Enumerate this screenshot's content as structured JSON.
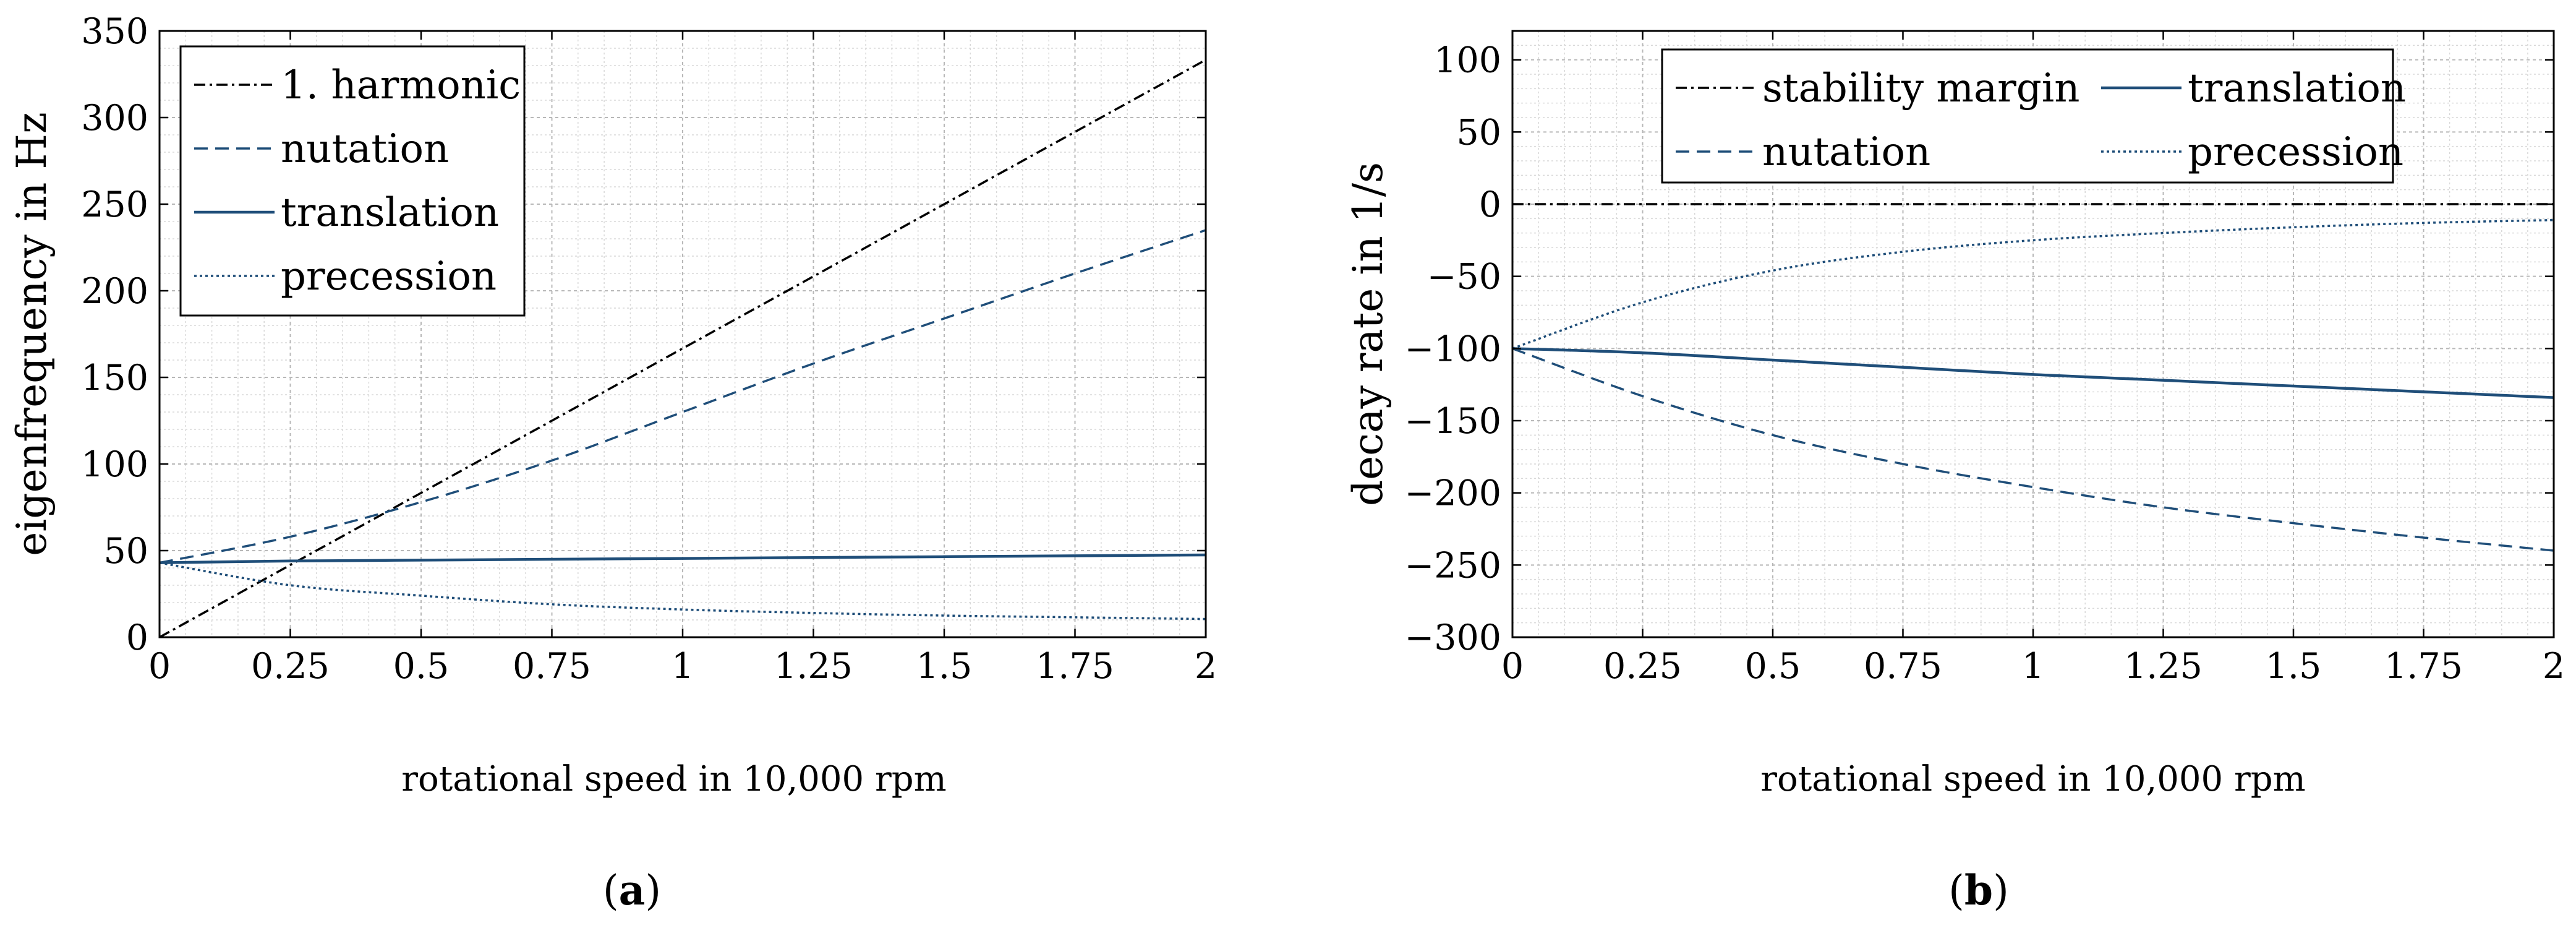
{
  "chart_data": [
    {
      "id": "a",
      "type": "line",
      "panel_label": "a",
      "xlabel": "rotational speed in 10,000 rpm",
      "ylabel": "eigenfrequency in Hz",
      "xlim": [
        0,
        2
      ],
      "ylim": [
        0,
        350
      ],
      "xticks": [
        0,
        0.25,
        0.5,
        0.75,
        1,
        1.25,
        1.5,
        1.75,
        2
      ],
      "xtick_labels": [
        "0",
        "0.25",
        "0.5",
        "0.75",
        "1",
        "1.25",
        "1.5",
        "1.75",
        "2"
      ],
      "yticks": [
        0,
        50,
        100,
        150,
        200,
        250,
        300,
        350
      ],
      "ytick_labels": [
        "0",
        "50",
        "100",
        "150",
        "200",
        "250",
        "300",
        "350"
      ],
      "grid": true,
      "legend_position": "top-left",
      "x": [
        0,
        0.25,
        0.5,
        0.75,
        1,
        1.25,
        1.5,
        1.75,
        2
      ],
      "series": [
        {
          "name": "1. harmonic",
          "style": "dashdot",
          "color": "#000000",
          "values": [
            0,
            41.7,
            83.3,
            125,
            166.7,
            208.3,
            250,
            291.7,
            333.3
          ]
        },
        {
          "name": "nutation",
          "style": "dashed",
          "color": "#1f4e79",
          "values": [
            43,
            58,
            78,
            102,
            130,
            158,
            184,
            210,
            235
          ]
        },
        {
          "name": "translation",
          "style": "solid",
          "color": "#1f4e79",
          "values": [
            43,
            44,
            44.5,
            45,
            45.5,
            46,
            46.5,
            47,
            47.5
          ]
        },
        {
          "name": "precession",
          "style": "dotted",
          "color": "#1f4e79",
          "values": [
            43,
            30,
            24,
            19,
            16,
            14,
            12.5,
            11.5,
            10.5
          ]
        }
      ]
    },
    {
      "id": "b",
      "type": "line",
      "panel_label": "b",
      "xlabel": "rotational speed in 10,000 rpm",
      "ylabel": "decay rate in 1/s",
      "xlim": [
        0,
        2
      ],
      "ylim": [
        -300,
        120
      ],
      "xticks": [
        0,
        0.25,
        0.5,
        0.75,
        1,
        1.25,
        1.5,
        1.75,
        2
      ],
      "xtick_labels": [
        "0",
        "0.25",
        "0.5",
        "0.75",
        "1",
        "1.25",
        "1.5",
        "1.75",
        "2"
      ],
      "yticks": [
        -300,
        -250,
        -200,
        -150,
        -100,
        -50,
        0,
        50,
        100
      ],
      "ytick_labels": [
        "−300",
        "−250",
        "−200",
        "−150",
        "−100",
        "−50",
        "0",
        "50",
        "100"
      ],
      "grid": true,
      "legend_position": "top",
      "x": [
        0,
        0.25,
        0.5,
        0.75,
        1,
        1.25,
        1.5,
        1.75,
        2
      ],
      "series": [
        {
          "name": "stability margin",
          "style": "dashdot",
          "color": "#000000",
          "values": [
            0,
            0,
            0,
            0,
            0,
            0,
            0,
            0,
            0
          ]
        },
        {
          "name": "translation",
          "style": "solid",
          "color": "#1f4e79",
          "values": [
            -100,
            -103,
            -108,
            -113,
            -118,
            -122,
            -126,
            -130,
            -134
          ]
        },
        {
          "name": "nutation",
          "style": "dashed",
          "color": "#1f4e79",
          "values": [
            -100,
            -133,
            -160,
            -180,
            -196,
            -210,
            -221,
            -231,
            -240
          ]
        },
        {
          "name": "precession",
          "style": "dotted",
          "color": "#1f4e79",
          "values": [
            -100,
            -68,
            -46,
            -33,
            -25,
            -20,
            -16,
            -13,
            -11
          ]
        }
      ]
    }
  ]
}
